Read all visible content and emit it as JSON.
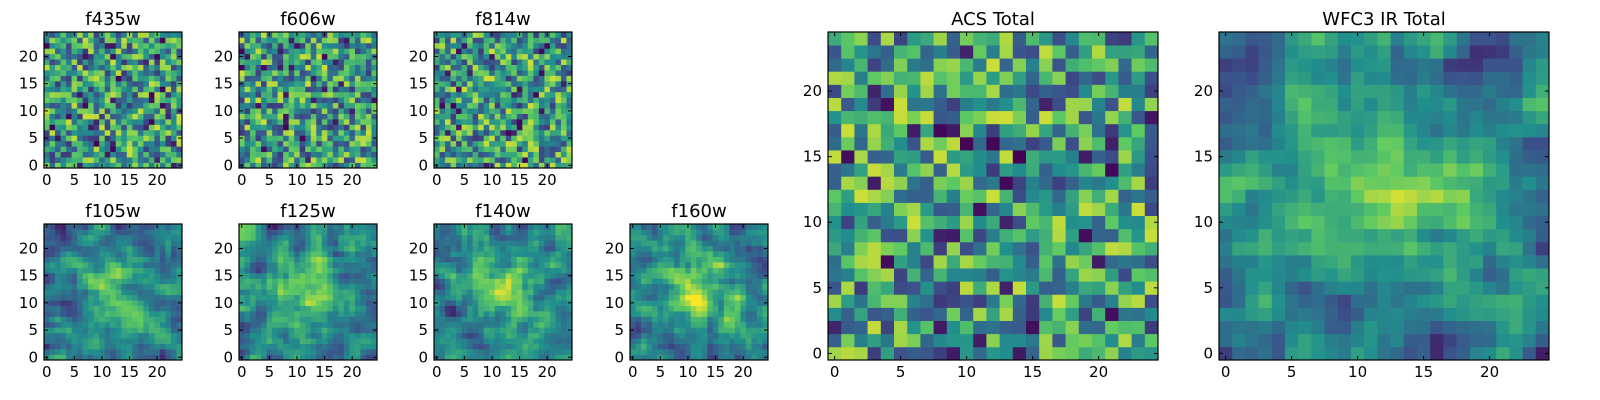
{
  "chart_data": [
    {
      "type": "heatmap",
      "title": "f435w",
      "xticks": [
        0,
        5,
        10,
        15,
        20
      ],
      "yticks": [
        0,
        5,
        10,
        15,
        20
      ],
      "xlim": [
        -0.5,
        24.5
      ],
      "ylim": [
        -0.5,
        24.5
      ],
      "grid": "25x25",
      "colormap": "viridis",
      "texture": "pixel noise"
    },
    {
      "type": "heatmap",
      "title": "f606w",
      "xticks": [
        0,
        5,
        10,
        15,
        20
      ],
      "yticks": [
        0,
        5,
        10,
        15,
        20
      ],
      "xlim": [
        -0.5,
        24.5
      ],
      "ylim": [
        -0.5,
        24.5
      ],
      "grid": "25x25",
      "colormap": "viridis",
      "texture": "pixel noise"
    },
    {
      "type": "heatmap",
      "title": "f814w",
      "xticks": [
        0,
        5,
        10,
        15,
        20
      ],
      "yticks": [
        0,
        5,
        10,
        15,
        20
      ],
      "xlim": [
        -0.5,
        24.5
      ],
      "ylim": [
        -0.5,
        24.5
      ],
      "grid": "25x25",
      "colormap": "viridis",
      "texture": "pixel noise"
    },
    {
      "type": "heatmap",
      "title": "f105w",
      "xticks": [
        0,
        5,
        10,
        15,
        20
      ],
      "yticks": [
        0,
        5,
        10,
        15,
        20
      ],
      "xlim": [
        -0.5,
        24.5
      ],
      "ylim": [
        -0.5,
        24.5
      ],
      "grid": "25x25",
      "colormap": "viridis",
      "texture": "smooth, bright center"
    },
    {
      "type": "heatmap",
      "title": "f125w",
      "xticks": [
        0,
        5,
        10,
        15,
        20
      ],
      "yticks": [
        0,
        5,
        10,
        15,
        20
      ],
      "xlim": [
        -0.5,
        24.5
      ],
      "ylim": [
        -0.5,
        24.5
      ],
      "grid": "25x25",
      "colormap": "viridis",
      "texture": "smooth, bright center"
    },
    {
      "type": "heatmap",
      "title": "f140w",
      "xticks": [
        0,
        5,
        10,
        15,
        20
      ],
      "yticks": [
        0,
        5,
        10,
        15,
        20
      ],
      "xlim": [
        -0.5,
        24.5
      ],
      "ylim": [
        -0.5,
        24.5
      ],
      "grid": "25x25",
      "colormap": "viridis",
      "texture": "smooth, bright center"
    },
    {
      "type": "heatmap",
      "title": "f160w",
      "xticks": [
        0,
        5,
        10,
        15,
        20
      ],
      "yticks": [
        0,
        5,
        10,
        15,
        20
      ],
      "xlim": [
        -0.5,
        24.5
      ],
      "ylim": [
        -0.5,
        24.5
      ],
      "grid": "25x25",
      "colormap": "viridis",
      "texture": "smooth, bright center"
    },
    {
      "type": "heatmap",
      "title": "ACS Total",
      "xticks": [
        0,
        5,
        10,
        15,
        20
      ],
      "yticks": [
        0,
        5,
        10,
        15,
        20
      ],
      "xlim": [
        -0.5,
        24.5
      ],
      "ylim": [
        -0.5,
        24.5
      ],
      "grid": "25x25",
      "colormap": "viridis",
      "texture": "pixel noise, mostly bright"
    },
    {
      "type": "heatmap",
      "title": "WFC3 IR Total",
      "xticks": [
        0,
        5,
        10,
        15,
        20
      ],
      "yticks": [
        0,
        5,
        10,
        15,
        20
      ],
      "xlim": [
        -0.5,
        24.5
      ],
      "ylim": [
        -0.5,
        24.5
      ],
      "grid": "25x25",
      "colormap": "viridis",
      "texture": "smooth, bright source near (12, 12)"
    }
  ],
  "colors": {
    "cmap": [
      "#440154",
      "#3b528b",
      "#21908d",
      "#5dc963",
      "#fde725"
    ]
  }
}
